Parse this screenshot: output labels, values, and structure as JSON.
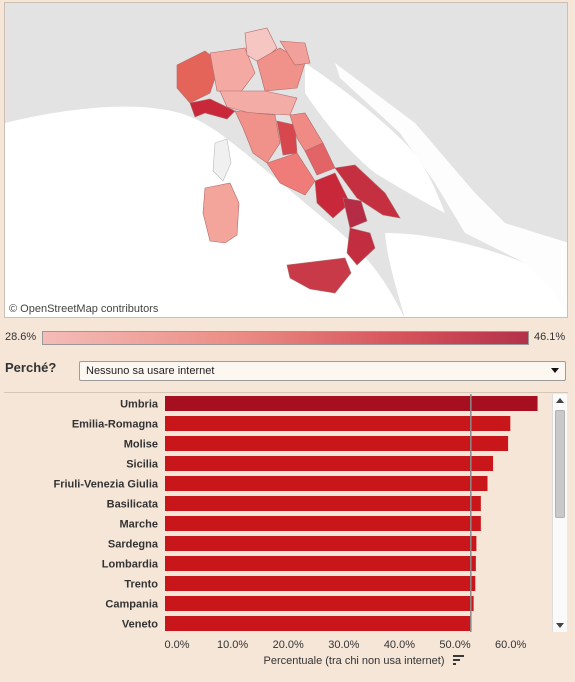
{
  "map": {
    "credit": "© OpenStreetMap contributors",
    "legend_min": "28.6%",
    "legend_max": "46.1%"
  },
  "filter": {
    "label": "Perché?",
    "selected": "Nessuno sa usare internet"
  },
  "colors": {
    "bar_top": "#a50f1f",
    "bar": "#c8161b",
    "reference_line": "#8a8a8a"
  },
  "icons": [
    "chevron-down-icon",
    "scroll-up-icon",
    "scroll-down-icon",
    "sort-icon"
  ],
  "chart_data": {
    "type": "bar",
    "orientation": "horizontal",
    "xlabel": "Percentuale (tra chi non usa internet)",
    "xlim": [
      0,
      66
    ],
    "x_ticks": [
      "0.0%",
      "10.0%",
      "20.0%",
      "30.0%",
      "40.0%",
      "50.0%",
      "60.0%"
    ],
    "categories": [
      "Umbria",
      "Emilia-Romagna",
      "Molise",
      "Sicilia",
      "Friuli-Venezia Giulia",
      "Basilicata",
      "Marche",
      "Sardegna",
      "Lombardia",
      "Trento",
      "Campania",
      "Veneto"
    ],
    "values": [
      67.0,
      62.1,
      61.7,
      59.0,
      58.0,
      56.8,
      56.8,
      56.0,
      55.9,
      55.8,
      55.5,
      55.0
    ],
    "reference_line": 55.0,
    "grid": false
  }
}
